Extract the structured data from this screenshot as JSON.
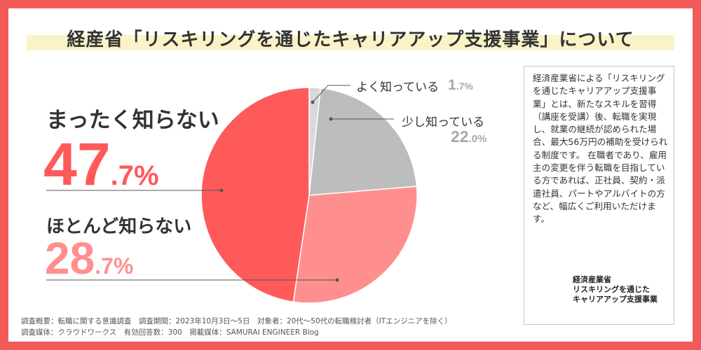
{
  "title": "経産省「リスキリングを通じたキャリアアップ支援事業」について",
  "chart_data": {
    "type": "pie",
    "categories": [
      "よく知っている",
      "少し知っている",
      "ほとんど知らない",
      "まったく知らない"
    ],
    "values": [
      1.7,
      22.0,
      28.7,
      47.7
    ],
    "colors": [
      "#d9d9d9",
      "#bdbdbd",
      "#ff8f8f",
      "#ff5a5a"
    ]
  },
  "labels": {
    "not_at_all": {
      "label": "まったく知らない",
      "int": "47",
      "dec": ".7%",
      "color": "#ff5a5a"
    },
    "hardly": {
      "label": "ほとんど知らない",
      "int": "28",
      "dec": ".7%",
      "color": "#ff8f8f"
    },
    "well": {
      "label": "よく知っている",
      "int": "1",
      "dec": ".7%"
    },
    "somewhat": {
      "label": "少し知っている",
      "int": "22",
      "dec": ".0%"
    }
  },
  "info": {
    "text": "経済産業省による「リスキリングを通じたキャリアアップ支援事業」とは、新たなスキルを習得（講座を受講）後、転職を実現し、就業の継続が認められた場合、最大56万円の補助を受けられる制度です。 在職者であり、雇用主の変更を伴う転職を目指している方であれば、正社員、契約・派遣社員、パートやアルバイトの方など、幅広くご利用いただけます。",
    "logo_line1": "経済産業省",
    "logo_line2": "リスキリングを通じた",
    "logo_line3": "キャリアアップ支援事業"
  },
  "footer": {
    "line1": "調査概要：転職に関する意識調査　調査期間：2023年10月3日〜5日　対象者：20代〜50代の転職検討者（ITエンジニアを除く）",
    "line2": "調査媒体：クラウドワークス　有効回答数：300　掲載媒体：SAMURAI ENGINEER Blog"
  }
}
